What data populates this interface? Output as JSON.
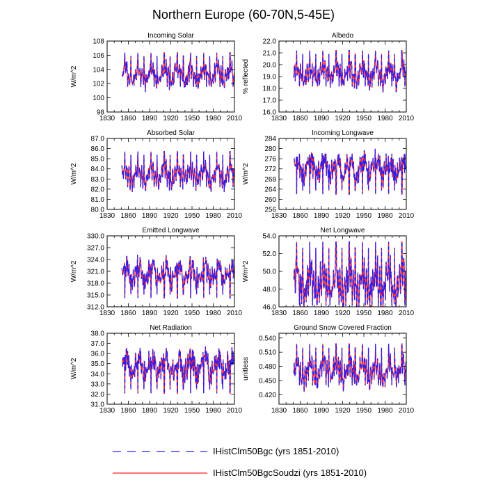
{
  "figure": {
    "title": "Northern Europe (60-70N,5-45E)",
    "legend": [
      {
        "name": "IHistClm50Bgc (yrs 1851-2010)",
        "color": "#2020ff",
        "style": "dashed"
      },
      {
        "name": "IHistClm50BgcSoudzi (yrs 1851-2010)",
        "color": "#ff2020",
        "style": "solid"
      }
    ]
  },
  "chart_data": [
    {
      "type": "line",
      "title": "Incoming Solar",
      "ylabel": "W/m^2",
      "xlim": [
        1830,
        2010
      ],
      "ylim": [
        98,
        108
      ],
      "xticks": [
        "1830",
        "1860",
        "1890",
        "1920",
        "1950",
        "1980",
        "2010"
      ],
      "yticks": [
        "98",
        "100",
        "102",
        "104",
        "106",
        "108"
      ],
      "x_range": [
        1851,
        2010
      ],
      "mean": 103.2,
      "amp": 3.0,
      "spike_dir": 1,
      "series_names": [
        "IHistClm50Bgc (yrs 1851-2010)",
        "IHistClm50BgcSoudzi (yrs 1851-2010)"
      ]
    },
    {
      "type": "line",
      "title": "Albedo",
      "ylabel": "% reflected",
      "xlim": [
        1830,
        2010
      ],
      "ylim": [
        16.0,
        22.0
      ],
      "xticks": [
        "1830",
        "1860",
        "1890",
        "1920",
        "1950",
        "1980",
        "2010"
      ],
      "yticks": [
        "16.0",
        "17.0",
        "18.0",
        "19.0",
        "20.0",
        "21.0",
        "22.0"
      ],
      "x_range": [
        1851,
        2010
      ],
      "mean": 19.2,
      "amp": 1.9,
      "spike_dir": 1,
      "series_names": [
        "IHistClm50Bgc (yrs 1851-2010)",
        "IHistClm50BgcSoudzi (yrs 1851-2010)"
      ]
    },
    {
      "type": "line",
      "title": "Absorbed Solar",
      "ylabel": "W/m^2",
      "xlim": [
        1830,
        2010
      ],
      "ylim": [
        80.0,
        87.0
      ],
      "xticks": [
        "1830",
        "1860",
        "1890",
        "1920",
        "1950",
        "1980",
        "2010"
      ],
      "yticks": [
        "80.0",
        "81.0",
        "82.0",
        "83.0",
        "84.0",
        "85.0",
        "86.0",
        "87.0"
      ],
      "x_range": [
        1851,
        2010
      ],
      "mean": 83.4,
      "amp": 2.2,
      "spike_dir": 1,
      "series_names": [
        "IHistClm50Bgc (yrs 1851-2010)",
        "IHistClm50BgcSoudzi (yrs 1851-2010)"
      ]
    },
    {
      "type": "line",
      "title": "Incoming Longwave",
      "ylabel": "W/m^2",
      "xlim": [
        1830,
        2010
      ],
      "ylim": [
        256,
        284
      ],
      "xticks": [
        "1830",
        "1860",
        "1890",
        "1920",
        "1950",
        "1980",
        "2010"
      ],
      "yticks": [
        "256",
        "260",
        "264",
        "268",
        "272",
        "276",
        "280",
        "284"
      ],
      "x_range": [
        1851,
        2010
      ],
      "mean": 272.5,
      "amp": 10.0,
      "spike_dir": -1,
      "series_names": [
        "IHistClm50Bgc (yrs 1851-2010)",
        "IHistClm50BgcSoudzi (yrs 1851-2010)"
      ]
    },
    {
      "type": "line",
      "title": "Emitted Longwave",
      "ylabel": "W/m^2",
      "xlim": [
        1830,
        2010
      ],
      "ylim": [
        312.0,
        330.0
      ],
      "xticks": [
        "1830",
        "1860",
        "1890",
        "1920",
        "1950",
        "1980",
        "2010"
      ],
      "yticks": [
        "312.0",
        "315.0",
        "318.0",
        "321.0",
        "324.0",
        "327.0",
        "330.0"
      ],
      "x_range": [
        1851,
        2010
      ],
      "mean": 320.5,
      "amp": 6.0,
      "spike_dir": -1,
      "series_names": [
        "IHistClm50Bgc (yrs 1851-2010)",
        "IHistClm50BgcSoudzi (yrs 1851-2010)"
      ]
    },
    {
      "type": "line",
      "title": "Net Longwave",
      "ylabel": "W/m^2",
      "xlim": [
        1830,
        2010
      ],
      "ylim": [
        46.0,
        54.0
      ],
      "xticks": [
        "1830",
        "1860",
        "1890",
        "1920",
        "1950",
        "1980",
        "2010"
      ],
      "yticks": [
        "46.0",
        "48.0",
        "50.0",
        "52.0",
        "54.0"
      ],
      "x_range": [
        1851,
        2010
      ],
      "mean": 48.6,
      "amp": 4.5,
      "spike_dir": 1,
      "series_names": [
        "IHistClm50Bgc (yrs 1851-2010)",
        "IHistClm50BgcSoudzi (yrs 1851-2010)"
      ]
    },
    {
      "type": "line",
      "title": "Net Radiation",
      "ylabel": "W/m^2",
      "xlim": [
        1830,
        2010
      ],
      "ylim": [
        31.0,
        38.0
      ],
      "xticks": [
        "1830",
        "1860",
        "1890",
        "1920",
        "1950",
        "1980",
        "2010"
      ],
      "yticks": [
        "31.0",
        "32.0",
        "33.0",
        "34.0",
        "35.0",
        "36.0",
        "37.0",
        "38.0"
      ],
      "x_range": [
        1851,
        2010
      ],
      "mean": 34.8,
      "amp": 2.6,
      "spike_dir": -1,
      "series_names": [
        "IHistClm50Bgc (yrs 1851-2010)",
        "IHistClm50BgcSoudzi (yrs 1851-2010)"
      ]
    },
    {
      "type": "line",
      "title": "Ground Snow Covered Fraction",
      "ylabel": "unitless",
      "xlim": [
        1830,
        2010
      ],
      "ylim": [
        0.4,
        0.55
      ],
      "xticks": [
        "1830",
        "1860",
        "1890",
        "1920",
        "1950",
        "1980",
        "2010"
      ],
      "yticks": [
        "0.420",
        "0.450",
        "0.480",
        "0.510",
        "0.540"
      ],
      "ytick_values": [
        0.42,
        0.45,
        0.48,
        0.51,
        0.54
      ],
      "x_range": [
        1851,
        2010
      ],
      "mean": 0.47,
      "amp": 0.055,
      "spike_dir": 1,
      "series_names": [
        "IHistClm50Bgc (yrs 1851-2010)",
        "IHistClm50BgcSoudzi (yrs 1851-2010)"
      ]
    }
  ]
}
